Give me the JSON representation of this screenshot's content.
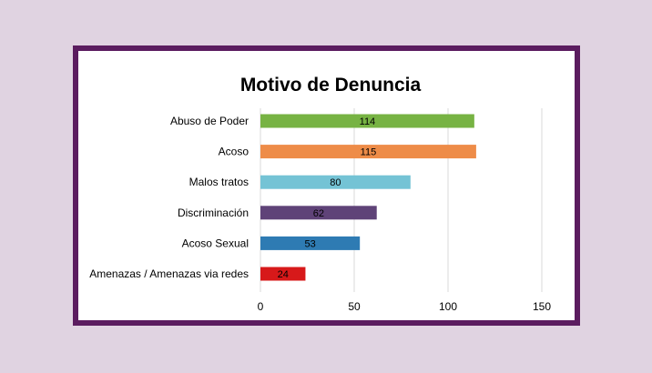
{
  "chart_data": {
    "type": "bar",
    "orientation": "horizontal",
    "title": "Motivo de Denuncia",
    "categories": [
      "Abuso de Poder",
      "Acoso",
      "Malos tratos",
      "Discriminación",
      "Acoso Sexual",
      "Amenazas / Amenazas via redes"
    ],
    "values": [
      114,
      115,
      80,
      62,
      53,
      24
    ],
    "colors": [
      "#77b343",
      "#ee8c48",
      "#74c3d5",
      "#5f4378",
      "#2e7bb3",
      "#d7191a"
    ],
    "xlim": [
      0,
      150
    ],
    "xticks": [
      0,
      50,
      100,
      150
    ],
    "grid": true,
    "legend": "none",
    "data_labels": true
  },
  "colors": {
    "background": "#e0d3e1",
    "frame_border": "#5b1c5f",
    "plot_background": "#ffffff",
    "gridline": "#d9d9d9"
  }
}
